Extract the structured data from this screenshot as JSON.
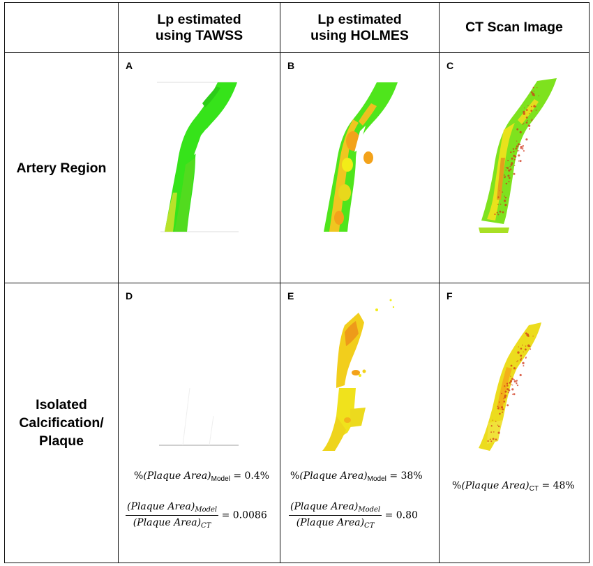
{
  "header": {
    "col1": [
      "Lp estimated",
      "using TAWSS"
    ],
    "col2": [
      "Lp estimated",
      "using HOLMES"
    ],
    "col3": "CT Scan Image"
  },
  "rows": [
    {
      "label": [
        "Artery Region"
      ],
      "panels": [
        "A",
        "B",
        "C"
      ]
    },
    {
      "label": [
        "Isolated",
        "Calcification/",
        "Plaque"
      ],
      "panels": [
        "D",
        "E",
        "F"
      ]
    }
  ],
  "equations": {
    "d_percent": {
      "prefix": "%",
      "term": "(Plaque Area)",
      "sub": "Model",
      "value": "= 0.4%"
    },
    "d_ratio": {
      "num_term": "(Plaque Area)",
      "num_sub": "Model",
      "den_term": "(Plaque Area)",
      "den_sub": "CT",
      "value": "= 0.0086"
    },
    "e_percent": {
      "prefix": "%",
      "term": "(Plaque Area)",
      "sub": "Model",
      "value": "= 38%"
    },
    "e_ratio": {
      "num_term": "(Plaque Area)",
      "num_sub": "Model",
      "den_term": "(Plaque Area)",
      "den_sub": "CT",
      "value": "= 0.80"
    },
    "f_percent": {
      "prefix": "%",
      "term": "(Plaque Area)",
      "sub": "CT",
      "value": "= 48%"
    }
  },
  "colors": {
    "green": "#2ee61a",
    "lime": "#8ee81c",
    "yellow": "#f2ec18",
    "orange": "#f3a21a",
    "red": "#e0301a"
  }
}
